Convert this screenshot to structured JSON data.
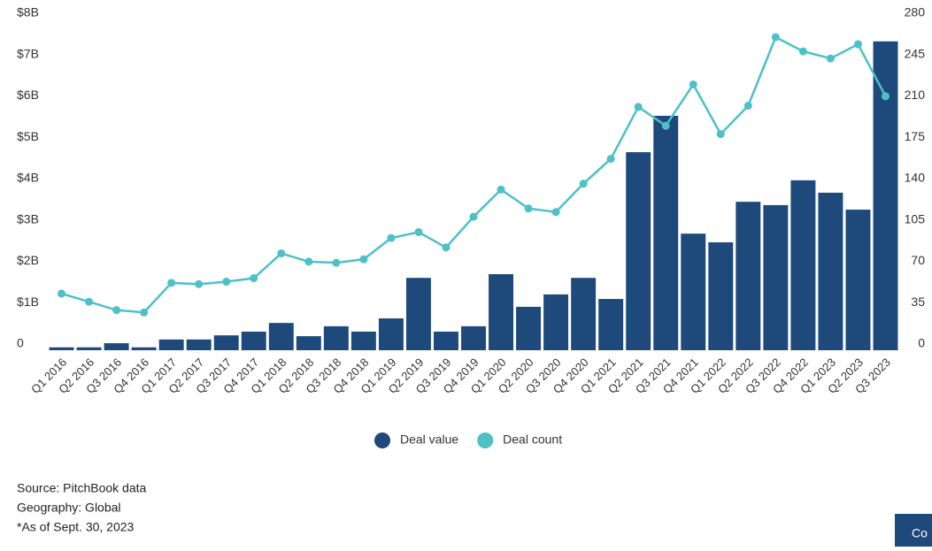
{
  "chart_data": {
    "type": "bar_line",
    "categories": [
      "Q1 2016",
      "Q2 2016",
      "Q3 2016",
      "Q4 2016",
      "Q1 2017",
      "Q2 2017",
      "Q3 2017",
      "Q4 2017",
      "Q1 2018",
      "Q2 2018",
      "Q3 2018",
      "Q4 2018",
      "Q1 2019",
      "Q2 2019",
      "Q3 2019",
      "Q4 2019",
      "Q1 2020",
      "Q2 2020",
      "Q3 2020",
      "Q4 2020",
      "Q1 2021",
      "Q2 2021",
      "Q3 2021",
      "Q4 2021",
      "Q1 2022",
      "Q2 2022",
      "Q3 2022",
      "Q4 2022",
      "Q1 2023",
      "Q2 2023",
      "Q3 2023"
    ],
    "series": [
      {
        "name": "Deal value",
        "type": "bar",
        "color": "#1d4a7a",
        "values": [
          0.07,
          0.07,
          0.17,
          0.07,
          0.26,
          0.26,
          0.36,
          0.45,
          0.66,
          0.34,
          0.58,
          0.45,
          0.77,
          1.75,
          0.45,
          0.58,
          1.84,
          1.05,
          1.35,
          1.75,
          1.24,
          4.79,
          5.67,
          2.82,
          2.61,
          3.59,
          3.51,
          4.11,
          3.81,
          3.4,
          7.47
        ]
      },
      {
        "name": "Deal count",
        "type": "line",
        "axis": "y2",
        "color": "#4dc0c8",
        "values": [
          48,
          41,
          34,
          32,
          57,
          56,
          58,
          61,
          82,
          75,
          74,
          77,
          95,
          100,
          87,
          113,
          136,
          120,
          117,
          141,
          162,
          206,
          190,
          225,
          183,
          207,
          265,
          253,
          247,
          259,
          215
        ]
      }
    ],
    "ylim": [
      0,
      8
    ],
    "yticks": [
      0,
      {
        "value": 1,
        "label": "$1B"
      },
      {
        "value": 2,
        "label": "$2B"
      },
      {
        "value": 3,
        "label": "$3B"
      },
      {
        "value": 4,
        "label": "$4B"
      },
      {
        "value": 5,
        "label": "$5B"
      },
      {
        "value": 6,
        "label": "$6B"
      },
      {
        "value": 7,
        "label": "$7B"
      },
      {
        "value": 8,
        "label": "$8B"
      }
    ],
    "y2lim": [
      0,
      280
    ],
    "y2ticks": [
      0,
      35,
      70,
      105,
      140,
      175,
      210,
      245,
      280
    ],
    "grid": false,
    "legend": "bottom",
    "notes": [
      "Source: PitchBook data",
      "Geography: Global",
      "*As of Sept. 30, 2023"
    ],
    "button": "Co"
  }
}
